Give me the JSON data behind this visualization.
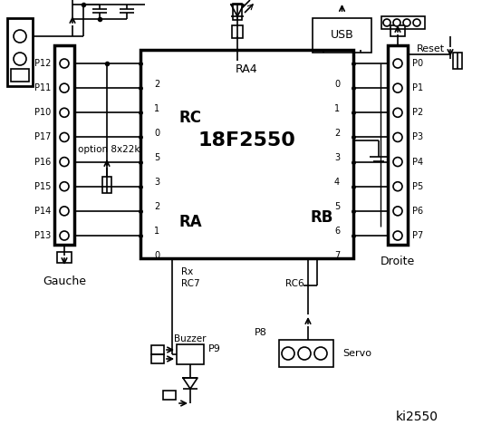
{
  "title": "ki2550",
  "bg_color": "#ffffff",
  "line_color": "#000000",
  "chip_label": "18F2550",
  "chip_sublabel": "RA4",
  "rc_label": "RC",
  "ra_label": "RA",
  "rb_label": "RB",
  "rc_pins": [
    "2",
    "1",
    "0",
    "5",
    "3",
    "2",
    "1",
    "0"
  ],
  "rb_pins": [
    "0",
    "1",
    "2",
    "3",
    "4",
    "5",
    "6",
    "7"
  ],
  "left_labels": [
    "P12",
    "P11",
    "P10",
    "P17",
    "P16",
    "P15",
    "P14",
    "P13"
  ],
  "right_labels": [
    "P0",
    "P1",
    "P2",
    "P3",
    "P4",
    "P5",
    "P6",
    "P7"
  ],
  "text_option": "option 8x22k",
  "text_gauche": "Gauche",
  "text_droite": "Droite",
  "text_servo": "Servo",
  "text_buzzer": "Buzzer",
  "text_p9": "P9",
  "text_p8": "P8",
  "text_usb": "USB",
  "text_reset": "Reset",
  "text_rx": "Rx",
  "text_rc7": "RC7",
  "text_rc6": "RC6"
}
